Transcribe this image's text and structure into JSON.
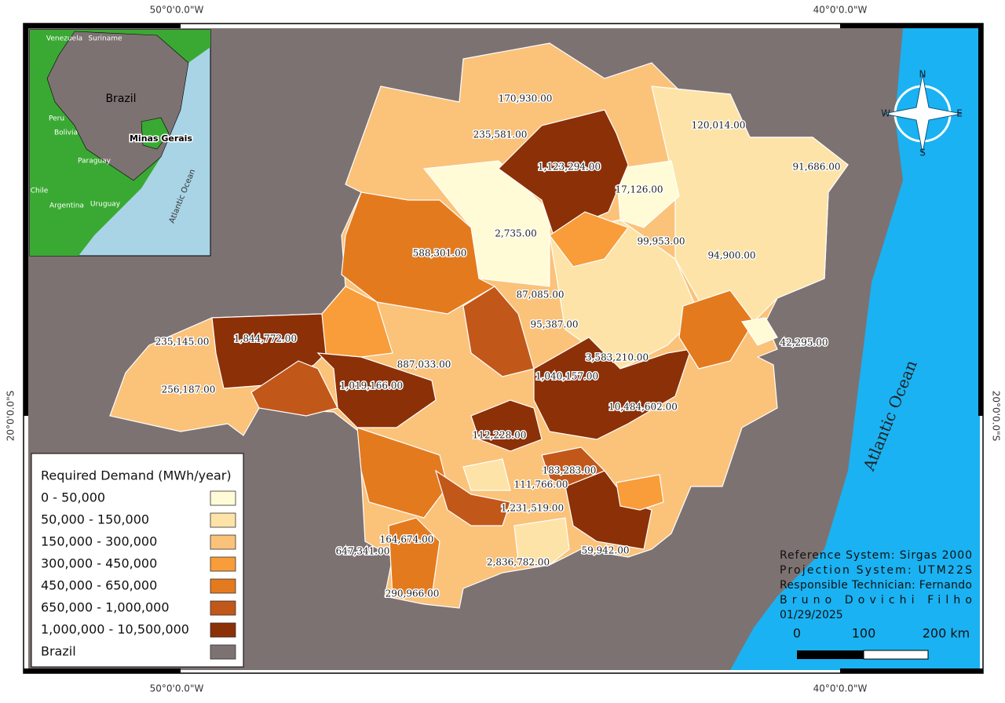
{
  "graticule": {
    "top": [
      "50°0'0.0\"W",
      "40°0'0.0\"W"
    ],
    "bottom": [
      "50°0'0.0\"W",
      "40°0'0.0\"W"
    ],
    "left": "20°0'0.0\"S",
    "right": "20°0'0.0\"S"
  },
  "inset": {
    "countries": [
      "Venezuela",
      "Suriname",
      "Brazil",
      "Peru",
      "Bolivia",
      "Paraguay",
      "Chile",
      "Argentina",
      "Uruguay"
    ],
    "state": "Minas Gerais",
    "ocean": "Atlantic Ocean"
  },
  "ocean": "Atlantic Ocean",
  "regions": [
    "170,930.00",
    "235,581.00",
    "1,123,294.00",
    "17,126.00",
    "120,014.00",
    "91,686.00",
    "2,735.00",
    "588,301.00",
    "99,953.00",
    "94,900.00",
    "87,085.00",
    "95,387.00",
    "235,145.00",
    "1,844,772.00",
    "42,295.00",
    "3,583,210.00",
    "887,033.00",
    "1,040,157.00",
    "1,019,166.00",
    "256,187.00",
    "10,484,602.00",
    "112,228.00",
    "183,283.00",
    "111,766.00",
    "1,231,519.00",
    "164,674.00",
    "647,341.00",
    "2,836,782.00",
    "59,942.00",
    "290,966.00"
  ],
  "legend": {
    "title": "Required Demand (MWh/year)",
    "items": [
      {
        "label": "0 - 50,000",
        "color": "#fffbd6"
      },
      {
        "label": "50,000 - 150,000",
        "color": "#fde3a7"
      },
      {
        "label": "150,000 - 300,000",
        "color": "#fbc27a"
      },
      {
        "label": "300,000 - 450,000",
        "color": "#f89d3a"
      },
      {
        "label": "450,000 - 650,000",
        "color": "#e47a1e"
      },
      {
        "label": "650,000 - 1,000,000",
        "color": "#c2571a"
      },
      {
        "label": "1,000,000 - 10,500,000",
        "color": "#8c3008"
      },
      {
        "label": "Brazil",
        "color": "#7d7272"
      }
    ]
  },
  "compass": {
    "n": "N",
    "s": "S",
    "e": "E",
    "w": "W"
  },
  "info": [
    "Reference System: Sirgas 2000",
    "Projection System: UTM22S",
    "Responsible Technician: Fernando",
    "Bruno Dovichi Filho",
    "01/29/2025"
  ],
  "scale": [
    "0",
    "100",
    "200 km"
  ]
}
